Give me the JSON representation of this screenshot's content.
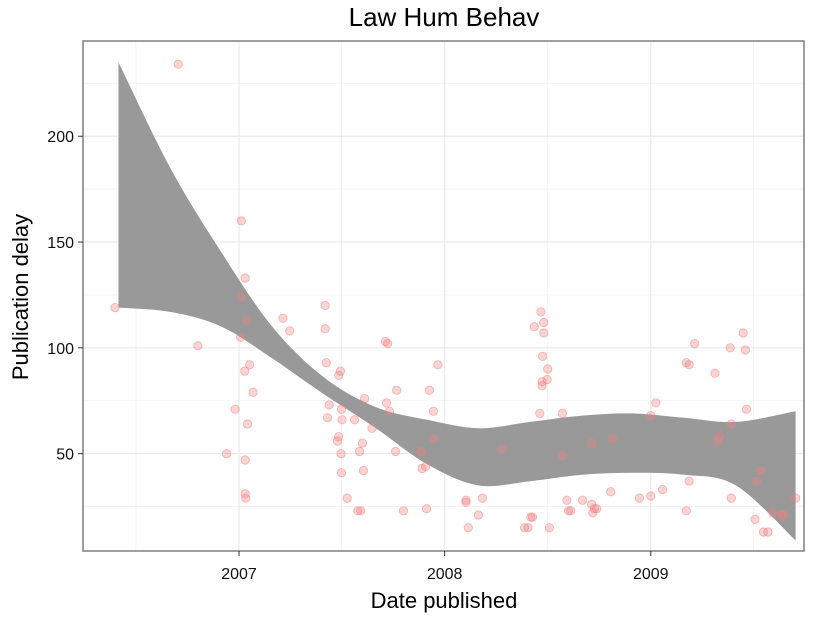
{
  "chart_data": {
    "type": "scatter",
    "title": "Law Hum Behav",
    "xlabel": "Date published",
    "ylabel": "Publication delay",
    "x_tick_labels": [
      "2007",
      "2008",
      "2009"
    ],
    "y_ticks": [
      50,
      100,
      150,
      200
    ],
    "xlim": [
      "2006-03-30",
      "2009-09-30"
    ],
    "ylim": [
      4,
      245
    ],
    "grid": true,
    "point_color": "#f28080",
    "band_color": "#999999",
    "smooth_band": {
      "x": [
        "2006-06-01",
        "2006-09-01",
        "2006-12-01",
        "2007-03-01",
        "2007-06-01",
        "2007-09-01",
        "2007-12-01",
        "2008-03-01",
        "2008-06-01",
        "2008-09-01",
        "2008-12-01",
        "2009-03-01",
        "2009-06-01",
        "2009-09-15"
      ],
      "lower": [
        119,
        117,
        110,
        95,
        78,
        62,
        45,
        35,
        37,
        40,
        41,
        40,
        35,
        9
      ],
      "upper": [
        235,
        185,
        145,
        110,
        86,
        72,
        66,
        62,
        65,
        68,
        69,
        67,
        65,
        70
      ]
    },
    "points": [
      {
        "x": "2006-05-26",
        "y": 119
      },
      {
        "x": "2006-09-15",
        "y": 234
      },
      {
        "x": "2006-10-20",
        "y": 101
      },
      {
        "x": "2006-12-10",
        "y": 50
      },
      {
        "x": "2006-12-25",
        "y": 71
      },
      {
        "x": "2007-01-05",
        "y": 160
      },
      {
        "x": "2007-01-05",
        "y": 124
      },
      {
        "x": "2007-01-04",
        "y": 105
      },
      {
        "x": "2007-01-12",
        "y": 133
      },
      {
        "x": "2007-01-14",
        "y": 113
      },
      {
        "x": "2007-01-11",
        "y": 89
      },
      {
        "x": "2007-01-12",
        "y": 47
      },
      {
        "x": "2007-01-16",
        "y": 64
      },
      {
        "x": "2007-01-20",
        "y": 92
      },
      {
        "x": "2007-01-26",
        "y": 79
      },
      {
        "x": "2007-01-12",
        "y": 31
      },
      {
        "x": "2007-01-13",
        "y": 29
      },
      {
        "x": "2007-03-20",
        "y": 114
      },
      {
        "x": "2007-04-01",
        "y": 108
      },
      {
        "x": "2007-06-03",
        "y": 120
      },
      {
        "x": "2007-06-03",
        "y": 109
      },
      {
        "x": "2007-06-05",
        "y": 93
      },
      {
        "x": "2007-06-10",
        "y": 73
      },
      {
        "x": "2007-06-07",
        "y": 67
      },
      {
        "x": "2007-06-30",
        "y": 89
      },
      {
        "x": "2007-06-27",
        "y": 87
      },
      {
        "x": "2007-06-27",
        "y": 58
      },
      {
        "x": "2007-06-25",
        "y": 56
      },
      {
        "x": "2007-07-02",
        "y": 71
      },
      {
        "x": "2007-07-03",
        "y": 66
      },
      {
        "x": "2007-07-01",
        "y": 50
      },
      {
        "x": "2007-07-02",
        "y": 41
      },
      {
        "x": "2007-07-12",
        "y": 29
      },
      {
        "x": "2007-07-31",
        "y": 23
      },
      {
        "x": "2007-08-05",
        "y": 23
      },
      {
        "x": "2007-07-25",
        "y": 66
      },
      {
        "x": "2007-08-08",
        "y": 55
      },
      {
        "x": "2007-08-03",
        "y": 51
      },
      {
        "x": "2007-08-10",
        "y": 42
      },
      {
        "x": "2007-08-12",
        "y": 76
      },
      {
        "x": "2007-08-25",
        "y": 62
      },
      {
        "x": "2007-09-18",
        "y": 103
      },
      {
        "x": "2007-09-22",
        "y": 102
      },
      {
        "x": "2007-09-20",
        "y": 74
      },
      {
        "x": "2007-09-25",
        "y": 70
      },
      {
        "x": "2007-10-08",
        "y": 80
      },
      {
        "x": "2007-10-06",
        "y": 51
      },
      {
        "x": "2007-10-20",
        "y": 23
      },
      {
        "x": "2007-11-20",
        "y": 51
      },
      {
        "x": "2007-11-22",
        "y": 43
      },
      {
        "x": "2007-11-28",
        "y": 44
      },
      {
        "x": "2007-11-30",
        "y": 24
      },
      {
        "x": "2007-12-05",
        "y": 80
      },
      {
        "x": "2007-12-12",
        "y": 70
      },
      {
        "x": "2007-12-12",
        "y": 57
      },
      {
        "x": "2007-12-20",
        "y": 92
      },
      {
        "x": "2008-02-08",
        "y": 28
      },
      {
        "x": "2008-02-08",
        "y": 27
      },
      {
        "x": "2008-02-12",
        "y": 15
      },
      {
        "x": "2008-03-01",
        "y": 21
      },
      {
        "x": "2008-03-08",
        "y": 29
      },
      {
        "x": "2008-04-12",
        "y": 52
      },
      {
        "x": "2008-05-22",
        "y": 15
      },
      {
        "x": "2008-05-28",
        "y": 15
      },
      {
        "x": "2008-06-02",
        "y": 20
      },
      {
        "x": "2008-06-05",
        "y": 20
      },
      {
        "x": "2008-06-08",
        "y": 110
      },
      {
        "x": "2008-06-20",
        "y": 117
      },
      {
        "x": "2008-06-25",
        "y": 112
      },
      {
        "x": "2008-06-25",
        "y": 107
      },
      {
        "x": "2008-06-23",
        "y": 96
      },
      {
        "x": "2008-06-22",
        "y": 84
      },
      {
        "x": "2008-06-22",
        "y": 82
      },
      {
        "x": "2008-07-02",
        "y": 90
      },
      {
        "x": "2008-07-01",
        "y": 85
      },
      {
        "x": "2008-06-18",
        "y": 69
      },
      {
        "x": "2008-07-05",
        "y": 15
      },
      {
        "x": "2008-07-28",
        "y": 69
      },
      {
        "x": "2008-07-28",
        "y": 49
      },
      {
        "x": "2008-08-05",
        "y": 28
      },
      {
        "x": "2008-08-08",
        "y": 23
      },
      {
        "x": "2008-08-12",
        "y": 23
      },
      {
        "x": "2008-09-02",
        "y": 28
      },
      {
        "x": "2008-09-18",
        "y": 26
      },
      {
        "x": "2008-09-18",
        "y": 55
      },
      {
        "x": "2008-09-20",
        "y": 22
      },
      {
        "x": "2008-09-23",
        "y": 24
      },
      {
        "x": "2008-09-27",
        "y": 24
      },
      {
        "x": "2008-10-22",
        "y": 32
      },
      {
        "x": "2008-10-25",
        "y": 57
      },
      {
        "x": "2008-12-12",
        "y": 29
      },
      {
        "x": "2009-01-01",
        "y": 30
      },
      {
        "x": "2009-01-01",
        "y": 68
      },
      {
        "x": "2009-01-10",
        "y": 74
      },
      {
        "x": "2009-01-22",
        "y": 33
      },
      {
        "x": "2009-03-05",
        "y": 93
      },
      {
        "x": "2009-03-10",
        "y": 92
      },
      {
        "x": "2009-03-05",
        "y": 23
      },
      {
        "x": "2009-03-10",
        "y": 37
      },
      {
        "x": "2009-03-20",
        "y": 102
      },
      {
        "x": "2009-04-25",
        "y": 88
      },
      {
        "x": "2009-04-30",
        "y": 56
      },
      {
        "x": "2009-05-03",
        "y": 58
      },
      {
        "x": "2009-05-22",
        "y": 100
      },
      {
        "x": "2009-05-24",
        "y": 64
      },
      {
        "x": "2009-05-24",
        "y": 29
      },
      {
        "x": "2009-06-14",
        "y": 107
      },
      {
        "x": "2009-06-18",
        "y": 99
      },
      {
        "x": "2009-06-20",
        "y": 71
      },
      {
        "x": "2009-07-08",
        "y": 37
      },
      {
        "x": "2009-07-05",
        "y": 19
      },
      {
        "x": "2009-07-15",
        "y": 42
      },
      {
        "x": "2009-07-20",
        "y": 13
      },
      {
        "x": "2009-07-28",
        "y": 13
      },
      {
        "x": "2009-08-06",
        "y": 22
      },
      {
        "x": "2009-08-22",
        "y": 21
      },
      {
        "x": "2009-08-24",
        "y": 21
      },
      {
        "x": "2009-09-15",
        "y": 29
      }
    ]
  }
}
